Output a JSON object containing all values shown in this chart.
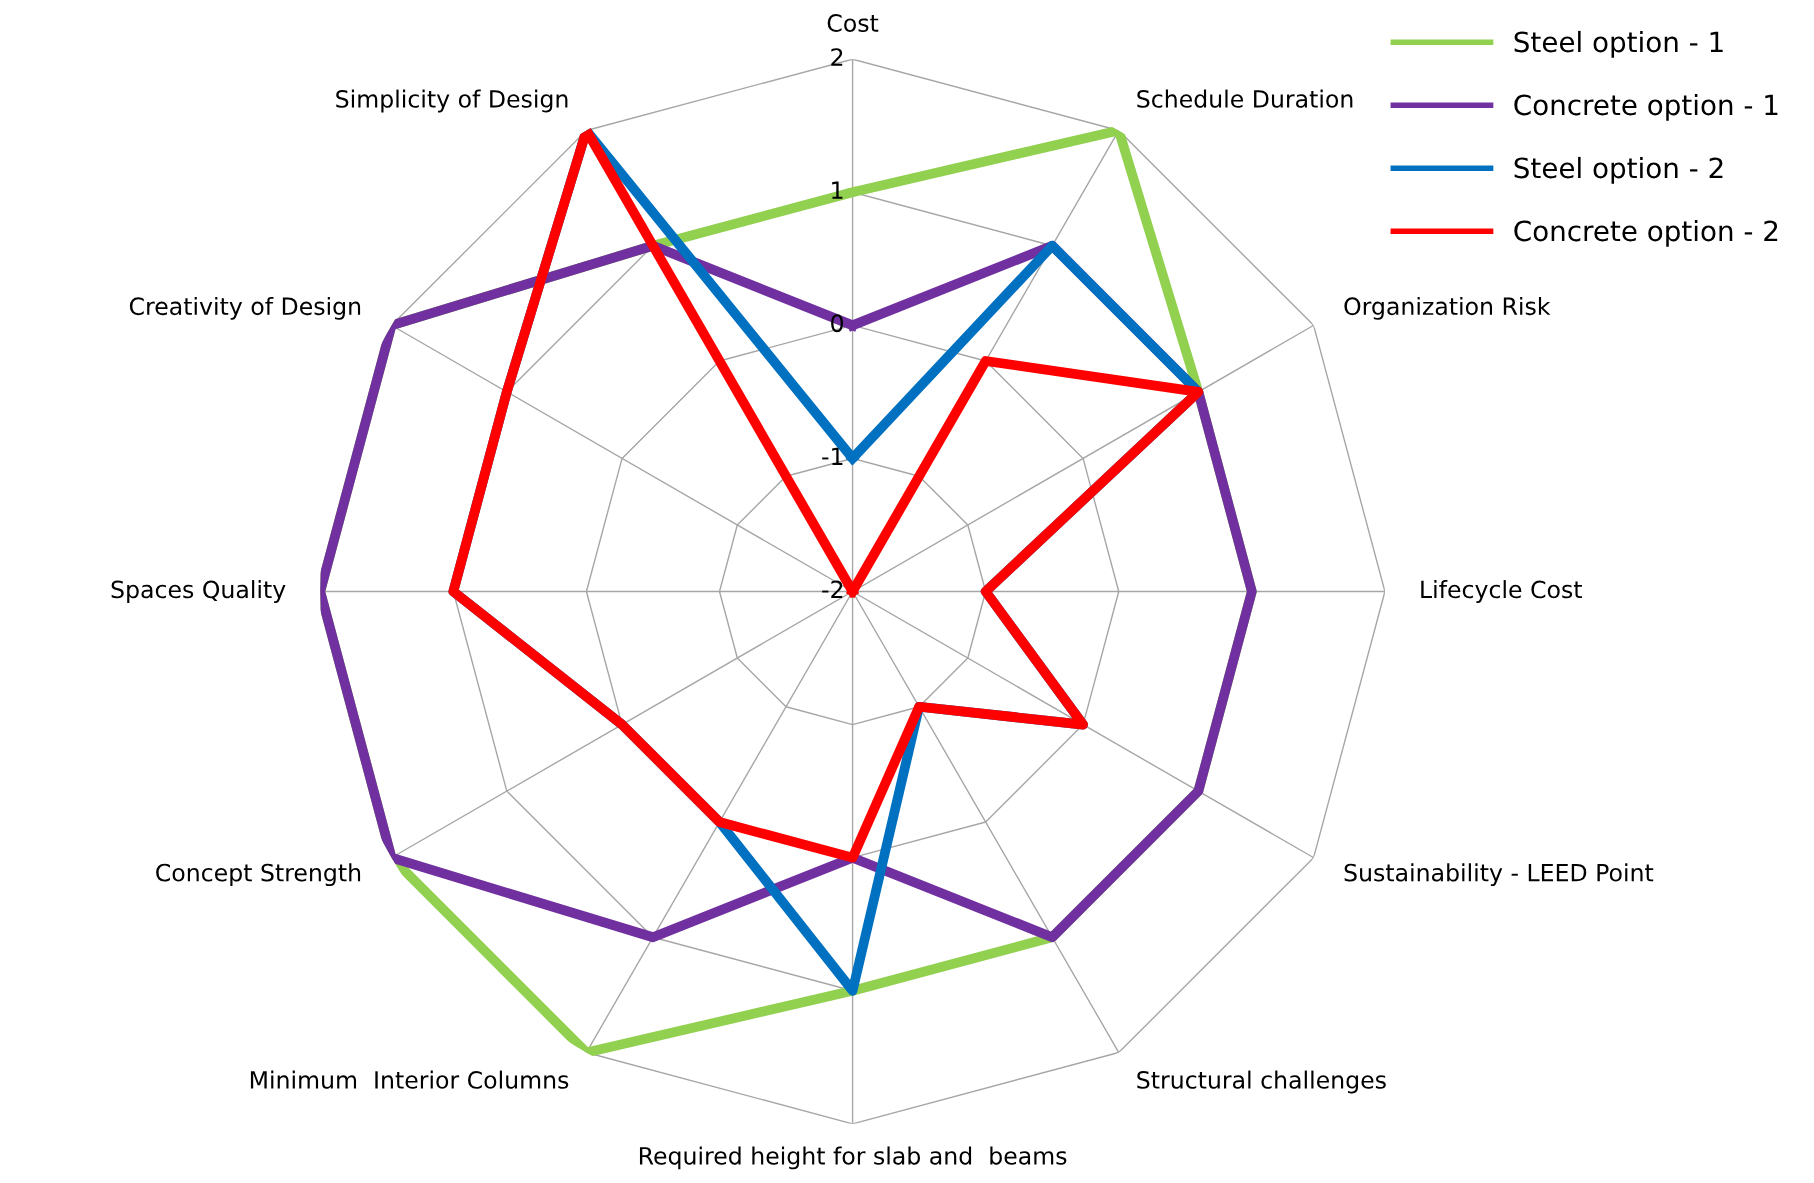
{
  "chart_data": {
    "type": "radar",
    "categories": [
      "Cost",
      "Schedule Duration",
      "Organization Risk",
      "Lifecycle Cost",
      "Sustainability - LEED Point",
      "Structural challenges",
      "Required height for slab and  beams",
      "Minimum  Interior Columns",
      "Concept Strength",
      "Spaces Quality",
      "Creativity of Design",
      "Simplicity of Design"
    ],
    "series": [
      {
        "name": "Steel option - 1",
        "color": "#92d050",
        "values": [
          1,
          2,
          1,
          1,
          1,
          1,
          1,
          2,
          2,
          2,
          2,
          1
        ]
      },
      {
        "name": "Concrete option - 1",
        "color": "#7030a0",
        "values": [
          0,
          1,
          1,
          1,
          1,
          1,
          0,
          1,
          2,
          2,
          2,
          1
        ]
      },
      {
        "name": "Steel option - 2",
        "color": "#0070c0",
        "values": [
          -1,
          1,
          1,
          -1,
          0,
          -1,
          1,
          0,
          0,
          1,
          1,
          2
        ]
      },
      {
        "name": "Concrete option - 2",
        "color": "#ff0000",
        "values": [
          -2,
          0,
          1,
          -1,
          0,
          -1,
          0,
          0,
          0,
          1,
          1,
          2
        ]
      }
    ],
    "ylim": [
      -2,
      2
    ],
    "yticks": [
      -2,
      -1,
      0,
      1,
      2
    ],
    "grid": true,
    "legend": "top right",
    "marker": "none",
    "line_style": "solid"
  }
}
